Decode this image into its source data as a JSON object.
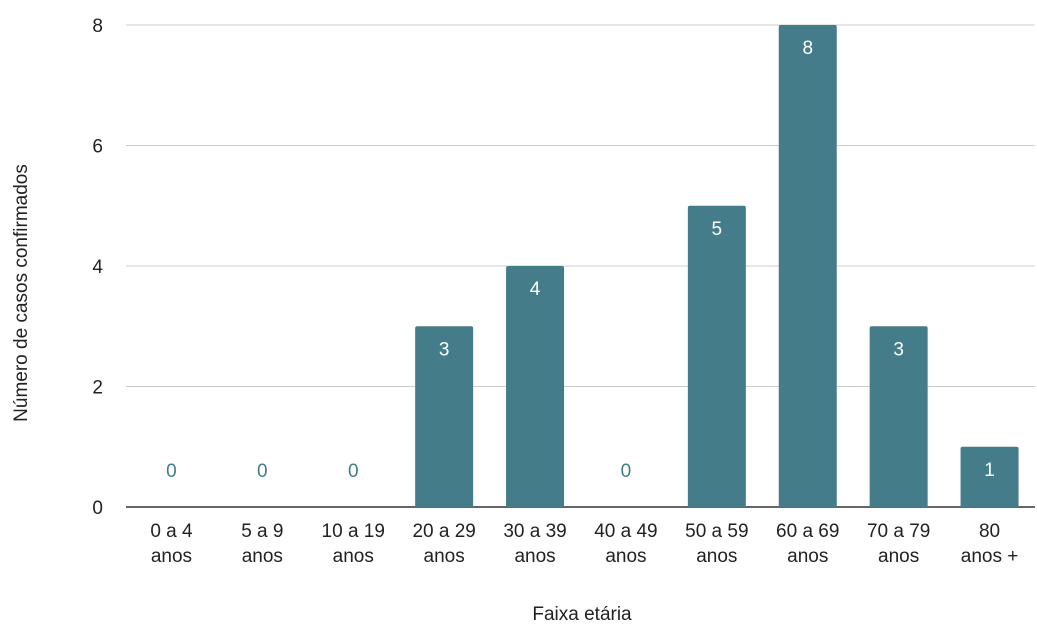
{
  "chart_data": {
    "type": "bar",
    "categories": [
      [
        "0 a 4",
        "anos"
      ],
      [
        "5 a 9",
        "anos"
      ],
      [
        "10 a 19",
        "anos"
      ],
      [
        "20 a 29",
        "anos"
      ],
      [
        "30 a 39",
        "anos"
      ],
      [
        "40 a 49",
        "anos"
      ],
      [
        "50 a 59",
        "anos"
      ],
      [
        "60 a 69",
        "anos"
      ],
      [
        "70 a 79",
        "anos"
      ],
      [
        "80",
        "anos +"
      ]
    ],
    "values": [
      0,
      0,
      0,
      3,
      4,
      0,
      5,
      8,
      3,
      1
    ],
    "xlabel": "Faixa etária",
    "ylabel": "Número de casos confirmados",
    "ylim": [
      0,
      8
    ],
    "yticks": [
      0,
      2,
      4,
      6,
      8
    ],
    "grid": true,
    "legend": "none",
    "colors": {
      "bar": "#447d89",
      "label_inside": "#ffffff",
      "label_zero": "#447d89",
      "grid": "#cccccc",
      "axis": "#333333"
    }
  }
}
